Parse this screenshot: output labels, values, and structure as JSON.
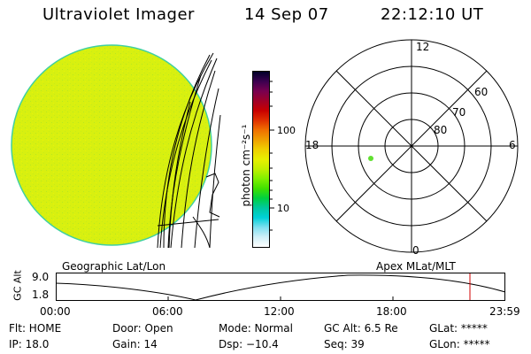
{
  "header": {
    "instrument": "Ultraviolet Imager",
    "date": "14 Sep 07",
    "time": "22:12:10 UT"
  },
  "colorbar": {
    "unit_label": "photon cm⁻²s⁻¹",
    "ticks": [
      "100",
      "10"
    ],
    "colors": [
      "#000028",
      "#3c0050",
      "#780050",
      "#a00028",
      "#c80000",
      "#e03000",
      "#f07000",
      "#f0a000",
      "#f0d000",
      "#e8f000",
      "#c0f000",
      "#80f000",
      "#40e000",
      "#00d040",
      "#00c8a0",
      "#00d0d8",
      "#80e0f0",
      "#d0f0f8",
      "#ffffff"
    ]
  },
  "image_disk": {
    "fill_color": "#d8f010",
    "edge_color": "#40d0a0",
    "projection_label": "Geographic Lat/Lon"
  },
  "polar_plot": {
    "hour_labels": {
      "top": "12",
      "left": "18",
      "right": "6",
      "bottom": "0"
    },
    "lat_labels": [
      "60",
      "70",
      "80"
    ],
    "projection_label": "Apex MLat/MLT",
    "marker_color": "#60e030"
  },
  "timeline": {
    "ylabel": "GC Alt",
    "yticks": [
      "9.0",
      "1.8"
    ],
    "xticks": [
      "00:00",
      "06:00",
      "12:00",
      "18:00",
      "23:59"
    ],
    "current_marker_color": "#d00000"
  },
  "status": {
    "flt": "Flt: HOME",
    "ip": "IP: 18.0",
    "door": "Door: Open",
    "gain": "Gain: 14",
    "mode": "Mode: Normal",
    "dsp": "Dsp:  −10.4",
    "gcalt": "GC Alt: 6.5 Re",
    "seq": "Seq: 39",
    "glat": "GLat: *****",
    "glon": "GLon: *****"
  }
}
